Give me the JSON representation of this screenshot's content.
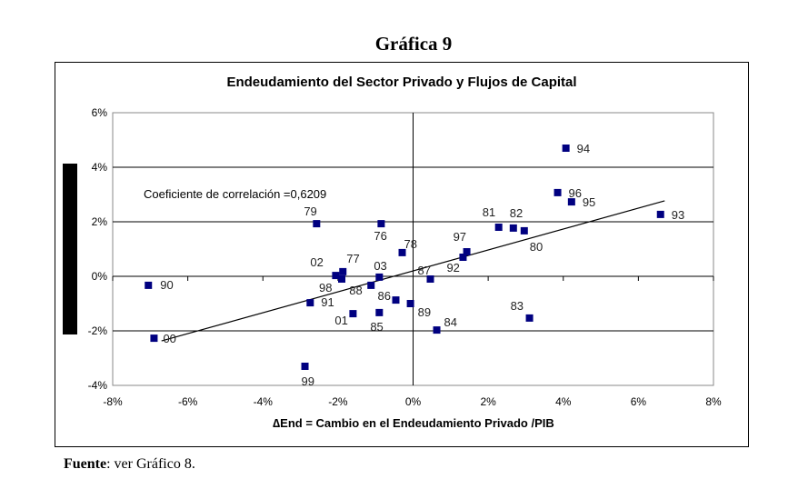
{
  "figure_title": "Gráfica 9",
  "source": {
    "label": "Fuente",
    "text": ": ver Gráfico 8."
  },
  "chart_data": {
    "type": "scatter",
    "title": "Endeudamiento del Sector Privado y Flujos de Capital",
    "xlabel": "∆End = Cambio en el Endeudamiento Privado /PIB",
    "ylabel": "",
    "xlim": [
      -8,
      8
    ],
    "ylim": [
      -4,
      6
    ],
    "xticks": [
      "-8%",
      "-6%",
      "-4%",
      "-2%",
      "0%",
      "2%",
      "4%",
      "6%",
      "8%"
    ],
    "yticks": [
      "-4%",
      "-2%",
      "0%",
      "2%",
      "4%",
      "6%"
    ],
    "grid": "horizontal",
    "annotation": "Coeficiente de correlación =0,6209",
    "marker_color": "#000080",
    "points": [
      {
        "label": "94",
        "x": 4.07,
        "y": 4.7
      },
      {
        "label": "96",
        "x": 3.85,
        "y": 3.07
      },
      {
        "label": "95",
        "x": 4.22,
        "y": 2.73
      },
      {
        "label": "93",
        "x": 6.59,
        "y": 2.27
      },
      {
        "label": "81",
        "x": 2.28,
        "y": 1.8
      },
      {
        "label": "82",
        "x": 2.67,
        "y": 1.77
      },
      {
        "label": "80",
        "x": 2.96,
        "y": 1.67
      },
      {
        "label": "97",
        "x": 1.43,
        "y": 0.9
      },
      {
        "label": "92",
        "x": 1.33,
        "y": 0.7
      },
      {
        "label": "87",
        "x": 0.46,
        "y": -0.1
      },
      {
        "label": "83",
        "x": 3.1,
        "y": -1.53
      },
      {
        "label": "84",
        "x": 0.63,
        "y": -1.97
      },
      {
        "label": "89",
        "x": -0.07,
        "y": -1.0
      },
      {
        "label": "86",
        "x": -0.46,
        "y": -0.87
      },
      {
        "label": "85",
        "x": -0.9,
        "y": -1.33
      },
      {
        "label": "01",
        "x": -1.6,
        "y": -1.37
      },
      {
        "label": "88",
        "x": -1.12,
        "y": -0.33
      },
      {
        "label": "03",
        "x": -0.9,
        "y": -0.03
      },
      {
        "label": "78",
        "x": -0.29,
        "y": 0.87
      },
      {
        "label": "76",
        "x": -0.85,
        "y": 1.93
      },
      {
        "label": "79",
        "x": -2.57,
        "y": 1.93
      },
      {
        "label": "02",
        "x": -2.06,
        "y": 0.03
      },
      {
        "label": "77",
        "x": -1.87,
        "y": 0.17
      },
      {
        "label": "98",
        "x": -1.9,
        "y": -0.1
      },
      {
        "label": "91",
        "x": -2.74,
        "y": -0.97
      },
      {
        "label": "99",
        "x": -2.88,
        "y": -3.3
      },
      {
        "label": "90",
        "x": -7.05,
        "y": -0.33
      },
      {
        "label": "00",
        "x": -6.9,
        "y": -2.27
      }
    ],
    "trendline": {
      "type": "linear",
      "from": [
        -6.7,
        -2.37
      ],
      "to": [
        6.7,
        2.77
      ]
    }
  }
}
